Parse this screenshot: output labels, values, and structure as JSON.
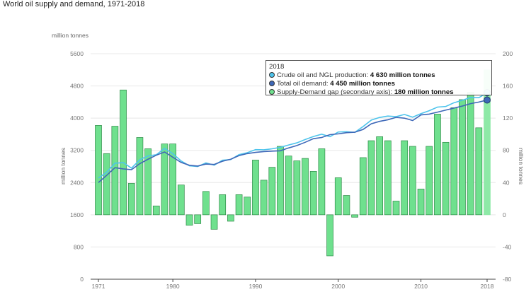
{
  "title": "World oil supply and demand, 1971-2018",
  "unit_label": "million tonnes",
  "tooltip": {
    "year": "2018",
    "rows": [
      {
        "label": "Crude oil and NGL production: ",
        "value": "4 630 million tonnes",
        "color": "#4ec4ec"
      },
      {
        "label": "Total oil demand: ",
        "value": "4 450 million tonnes",
        "color": "#3e68b8"
      },
      {
        "label": "Supply-Demand gap (secondary axis): ",
        "value": "180 million tonnes",
        "color": "#6fe08e"
      }
    ]
  },
  "chart_data": {
    "type": "bar+line",
    "title": "World oil supply and demand, 1971-2018",
    "ylabel": "million tonnes",
    "y2label": "million tonnes",
    "ylim": [
      0,
      5600
    ],
    "y2lim": [
      -80,
      200
    ],
    "yticks": [
      0,
      800,
      1600,
      2400,
      3200,
      4000,
      4800,
      5600
    ],
    "y2ticks": [
      -80,
      -40,
      0,
      40,
      80,
      120,
      160,
      200
    ],
    "xticks": [
      1971,
      1980,
      1990,
      2000,
      2010,
      2018
    ],
    "grid": true,
    "x": [
      1971,
      1972,
      1973,
      1974,
      1975,
      1976,
      1977,
      1978,
      1979,
      1980,
      1981,
      1982,
      1983,
      1984,
      1985,
      1986,
      1987,
      1988,
      1989,
      1990,
      1991,
      1992,
      1993,
      1994,
      1995,
      1996,
      1997,
      1998,
      1999,
      2000,
      2001,
      2002,
      2003,
      2004,
      2005,
      2006,
      2007,
      2008,
      2009,
      2010,
      2011,
      2012,
      2013,
      2014,
      2015,
      2016,
      2017,
      2018
    ],
    "series": [
      {
        "name": "Supply-Demand gap (secondary axis)",
        "type": "bar",
        "axis": "secondary",
        "color": "#6fe08e",
        "values": [
          111,
          76,
          110,
          155,
          39,
          96,
          82,
          11,
          88,
          88,
          37,
          -13,
          -11,
          29,
          -18,
          25,
          -8,
          25,
          22,
          68,
          43,
          59,
          85,
          73,
          67,
          70,
          54,
          82,
          -51,
          46,
          24,
          -3,
          71,
          92,
          97,
          92,
          17,
          92,
          85,
          32,
          85,
          125,
          90,
          133,
          143,
          152,
          108,
          180
        ]
      },
      {
        "name": "Crude oil and NGL production",
        "type": "line",
        "axis": "primary",
        "color": "#4ec4ec",
        "values": [
          2511,
          2656,
          2880,
          2895,
          2759,
          2966,
          3062,
          3091,
          3248,
          3118,
          2937,
          2817,
          2799,
          2889,
          2832,
          2955,
          2972,
          3095,
          3142,
          3218,
          3213,
          3239,
          3275,
          3333,
          3387,
          3470,
          3544,
          3602,
          3539,
          3656,
          3664,
          3647,
          3791,
          3952,
          4017,
          4052,
          4037,
          4092,
          4025,
          4112,
          4185,
          4275,
          4290,
          4383,
          4443,
          4512,
          4508,
          4630
        ]
      },
      {
        "name": "Total oil demand",
        "type": "line",
        "axis": "primary",
        "color": "#3e68b8",
        "values": [
          2400,
          2580,
          2770,
          2740,
          2720,
          2870,
          2980,
          3080,
          3160,
          3030,
          2900,
          2830,
          2810,
          2860,
          2850,
          2930,
          2980,
          3070,
          3120,
          3150,
          3170,
          3180,
          3190,
          3260,
          3320,
          3400,
          3490,
          3520,
          3590,
          3610,
          3640,
          3650,
          3720,
          3860,
          3920,
          3960,
          4020,
          4000,
          3940,
          4080,
          4100,
          4150,
          4200,
          4250,
          4300,
          4360,
          4400,
          4450
        ]
      }
    ]
  }
}
